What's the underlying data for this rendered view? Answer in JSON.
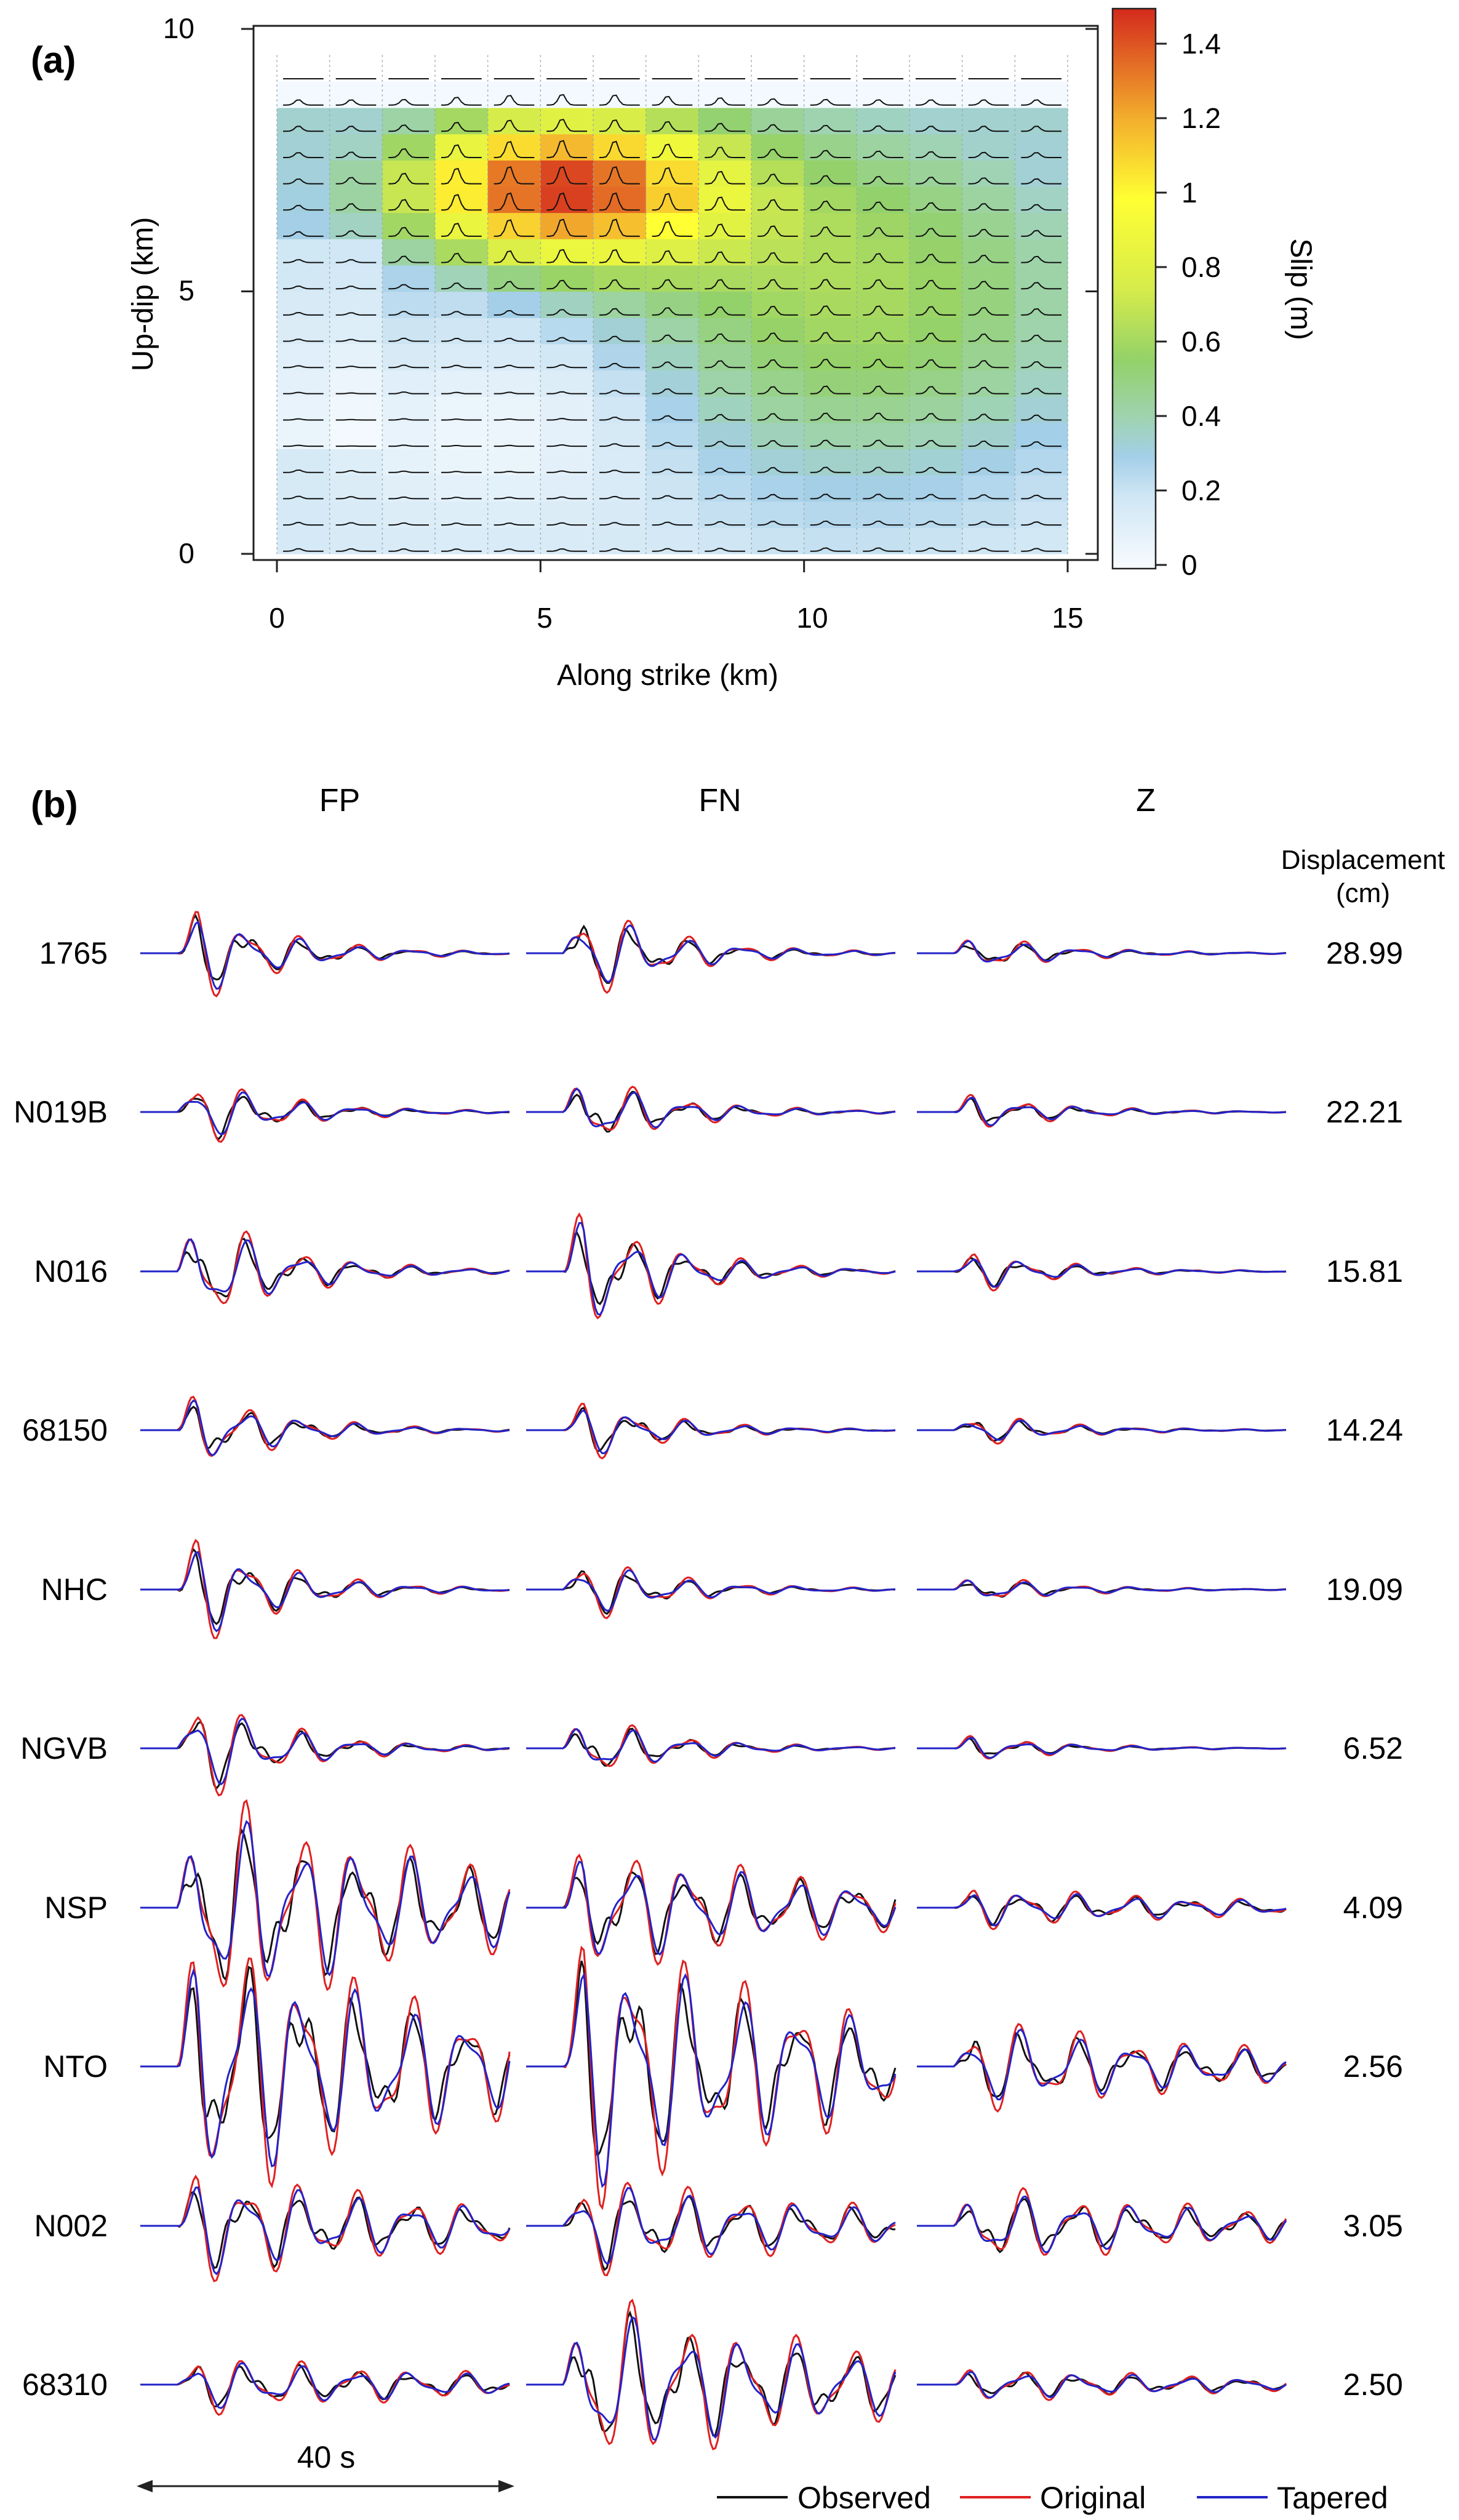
{
  "panel_a": {
    "label": "(a)",
    "x_label": "Along strike (km)",
    "y_label": "Up-dip (km)",
    "x_ticks": [
      "0",
      "5",
      "10",
      "15"
    ],
    "y_ticks": [
      "0",
      "5",
      "10"
    ],
    "colorbar_label": "Slip (m)",
    "colorbar_ticks": [
      "0",
      "0.2",
      "0.4",
      "0.6",
      "0.8",
      "1",
      "1.2",
      "1.4"
    ],
    "colors": {
      "low": "#f4f8fb",
      "blue": "#a9d1ea",
      "green": "#8fd26b",
      "yellow": "#ffff33",
      "orange": "#f0a030",
      "red": "#d7301f"
    }
  },
  "panel_b": {
    "label": "(b)",
    "components": [
      "FP",
      "FN",
      "Z"
    ],
    "displacement_header_1": "Displacement",
    "displacement_header_2": "(cm)",
    "stations": [
      {
        "name": "1765",
        "amp": "28.99"
      },
      {
        "name": "N019B",
        "amp": "22.21"
      },
      {
        "name": "N016",
        "amp": "15.81"
      },
      {
        "name": "68150",
        "amp": "14.24"
      },
      {
        "name": "NHC",
        "amp": "19.09"
      },
      {
        "name": "NGVB",
        "amp": "6.52"
      },
      {
        "name": "NSP",
        "amp": "4.09"
      },
      {
        "name": "NTO",
        "amp": "2.56"
      },
      {
        "name": "N002",
        "amp": "3.05"
      },
      {
        "name": "68310",
        "amp": "2.50"
      }
    ],
    "time_scale": "40 s",
    "legend": [
      {
        "label": "Observed",
        "color": "#111111"
      },
      {
        "label": "Original",
        "color": "#e02020"
      },
      {
        "label": "Tapered",
        "color": "#2323c8"
      }
    ]
  },
  "chart_data": [
    {
      "type": "heatmap",
      "xlabel": "Along strike (km)",
      "ylabel": "Up-dip (km)",
      "xlim": [
        0,
        15
      ],
      "ylim": [
        0,
        10
      ],
      "colorbar": {
        "label": "Slip (m)",
        "range": [
          0,
          1.5
        ]
      },
      "description_of_values": "Slip (m) on a 15 x 18 grid of 1 km x 0.5 km subfaults; peak ~1.25 m near x=5 km, y=7 km; low slip (<0.3 m) below 4 km depth west of x=8 km."
    },
    {
      "type": "line",
      "xlabel": "",
      "ylabel": "",
      "series": [
        {
          "name": "Observed"
        },
        {
          "name": "Original"
        },
        {
          "name": "Tapered"
        }
      ]
    }
  ]
}
